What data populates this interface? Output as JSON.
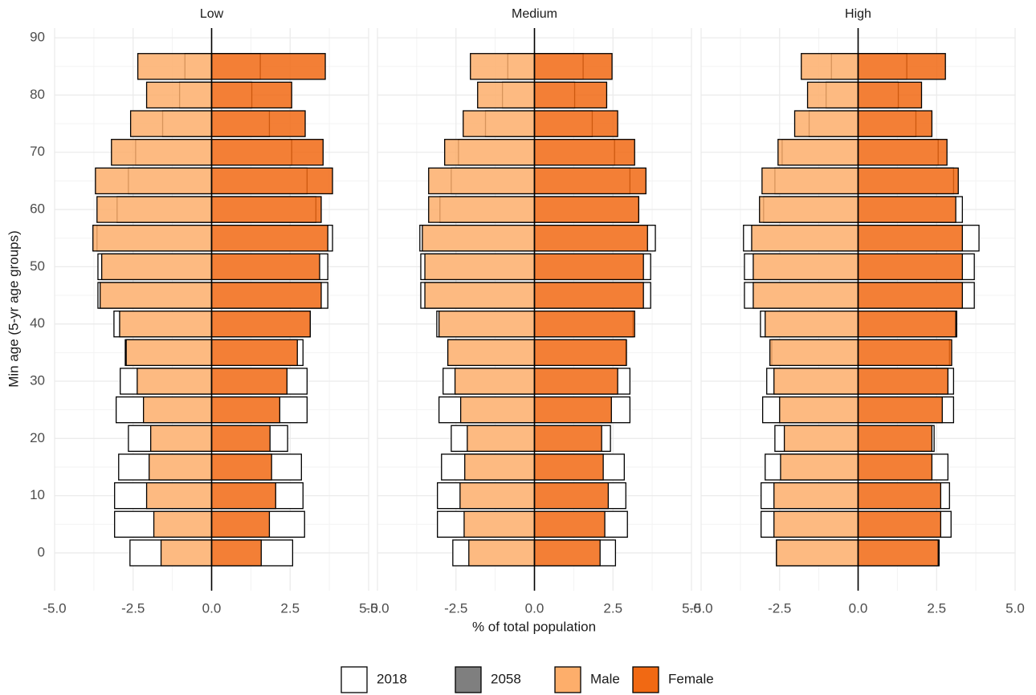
{
  "chart_data": {
    "type": "pyramid",
    "x_label": "% of total population",
    "y_label": "Min age (5-yr age groups)",
    "ages": [
      0,
      5,
      10,
      15,
      20,
      25,
      30,
      35,
      40,
      45,
      50,
      55,
      60,
      65,
      70,
      75,
      80,
      85
    ],
    "xlim": [
      -5,
      5
    ],
    "xticks": [
      {
        "value": -5,
        "label": "-5.0"
      },
      {
        "value": -2.5,
        "label": "-2.5"
      },
      {
        "value": 0,
        "label": "0.0"
      },
      {
        "value": 2.5,
        "label": "2.5"
      },
      {
        "value": 5,
        "label": "5.0"
      }
    ],
    "ylim": [
      -6.6,
      91.7
    ],
    "yticks": [
      0,
      10,
      20,
      30,
      40,
      50,
      60,
      70,
      80,
      90
    ],
    "grid": true,
    "legend": {
      "years": [
        {
          "name": "2018",
          "fill": "#ffffff"
        },
        {
          "name": "2058",
          "fill": "#7f7f7f"
        }
      ],
      "sexes": [
        {
          "name": "Male",
          "color": "#fdae6b"
        },
        {
          "name": "Female",
          "color": "#f16913"
        }
      ]
    },
    "facets": [
      {
        "title": "Low",
        "series": [
          {
            "sex": "Male",
            "year": "2018",
            "values": [
              -2.6,
              -3.09,
              -3.09,
              -2.96,
              -2.65,
              -3.04,
              -2.91,
              -2.75,
              -3.11,
              -3.62,
              -3.62,
              -3.65,
              -3.01,
              -2.65,
              -2.42,
              -1.56,
              -1.02,
              -0.85
            ]
          },
          {
            "sex": "Male",
            "year": "2058",
            "values": [
              -1.61,
              -1.84,
              -2.07,
              -1.99,
              -1.94,
              -2.17,
              -2.37,
              -2.72,
              -2.93,
              -3.55,
              -3.5,
              -3.78,
              -3.65,
              -3.7,
              -3.19,
              -2.58,
              -2.07,
              -2.35
            ]
          },
          {
            "sex": "Female",
            "year": "2018",
            "values": [
              2.58,
              2.96,
              2.91,
              2.86,
              2.42,
              3.04,
              3.04,
              2.91,
              3.14,
              3.7,
              3.7,
              3.85,
              3.32,
              3.04,
              2.55,
              1.84,
              1.28,
              1.55
            ]
          },
          {
            "sex": "Female",
            "year": "2058",
            "values": [
              1.58,
              1.84,
              2.04,
              1.91,
              1.86,
              2.17,
              2.4,
              2.73,
              3.14,
              3.49,
              3.44,
              3.7,
              3.49,
              3.85,
              3.55,
              2.98,
              2.55,
              3.62
            ]
          }
        ]
      },
      {
        "title": "Medium",
        "series": [
          {
            "sex": "Male",
            "year": "2018",
            "values": [
              -2.6,
              -3.09,
              -3.09,
              -2.96,
              -2.65,
              -3.04,
              -2.91,
              -2.75,
              -3.11,
              -3.62,
              -3.62,
              -3.65,
              -3.01,
              -2.65,
              -2.42,
              -1.56,
              -1.02,
              -0.85
            ]
          },
          {
            "sex": "Male",
            "year": "2058",
            "values": [
              -2.09,
              -2.24,
              -2.37,
              -2.22,
              -2.14,
              -2.35,
              -2.53,
              -2.76,
              -3.04,
              -3.49,
              -3.49,
              -3.57,
              -3.37,
              -3.37,
              -2.86,
              -2.27,
              -1.81,
              -2.04
            ]
          },
          {
            "sex": "Female",
            "year": "2018",
            "values": [
              2.58,
              2.96,
              2.91,
              2.86,
              2.42,
              3.04,
              3.04,
              2.91,
              3.14,
              3.7,
              3.7,
              3.85,
              3.32,
              3.04,
              2.55,
              1.84,
              1.28,
              1.55
            ]
          },
          {
            "sex": "Female",
            "year": "2058",
            "values": [
              2.09,
              2.24,
              2.35,
              2.19,
              2.14,
              2.45,
              2.65,
              2.93,
              3.19,
              3.47,
              3.47,
              3.6,
              3.32,
              3.55,
              3.19,
              2.65,
              2.3,
              2.47
            ]
          }
        ]
      },
      {
        "title": "High",
        "series": [
          {
            "sex": "Male",
            "year": "2018",
            "values": [
              -2.6,
              -3.09,
              -3.09,
              -2.96,
              -2.65,
              -3.04,
              -2.91,
              -2.75,
              -3.11,
              -3.62,
              -3.62,
              -3.65,
              -3.01,
              -2.65,
              -2.42,
              -1.56,
              -1.02,
              -0.85
            ]
          },
          {
            "sex": "Male",
            "year": "2058",
            "values": [
              -2.6,
              -2.68,
              -2.68,
              -2.47,
              -2.35,
              -2.5,
              -2.68,
              -2.81,
              -2.96,
              -3.34,
              -3.34,
              -3.39,
              -3.14,
              -3.06,
              -2.55,
              -2.02,
              -1.61,
              -1.81
            ]
          },
          {
            "sex": "Female",
            "year": "2018",
            "values": [
              2.58,
              2.96,
              2.91,
              2.86,
              2.42,
              3.04,
              3.04,
              2.91,
              3.14,
              3.7,
              3.7,
              3.85,
              3.32,
              3.04,
              2.55,
              1.84,
              1.28,
              1.55
            ]
          },
          {
            "sex": "Female",
            "year": "2058",
            "values": [
              2.55,
              2.63,
              2.63,
              2.35,
              2.35,
              2.68,
              2.86,
              2.98,
              3.11,
              3.32,
              3.32,
              3.32,
              3.11,
              3.19,
              2.83,
              2.35,
              2.02,
              2.78
            ]
          }
        ]
      }
    ]
  }
}
